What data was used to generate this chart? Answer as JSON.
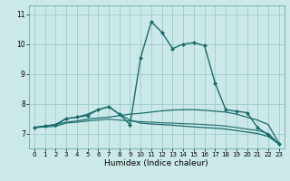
{
  "title": "",
  "xlabel": "Humidex (Indice chaleur)",
  "xlim": [
    -0.5,
    23.5
  ],
  "ylim": [
    6.5,
    11.3
  ],
  "xticks": [
    0,
    1,
    2,
    3,
    4,
    5,
    6,
    7,
    8,
    9,
    10,
    11,
    12,
    13,
    14,
    15,
    16,
    17,
    18,
    19,
    20,
    21,
    22,
    23
  ],
  "yticks": [
    7,
    8,
    9,
    10,
    11
  ],
  "background_color": "#cce9e9",
  "grid_color": "#8bbcbc",
  "line_color": "#1a6b6b",
  "lines": [
    {
      "x": [
        0,
        1,
        2,
        3,
        4,
        5,
        6,
        7,
        8,
        9,
        10,
        11,
        12,
        13,
        14,
        15,
        16,
        17,
        18,
        19,
        20,
        21,
        22,
        23
      ],
      "y": [
        7.2,
        7.25,
        7.3,
        7.5,
        7.55,
        7.6,
        7.8,
        7.9,
        7.65,
        7.3,
        9.55,
        10.75,
        10.4,
        9.85,
        10.0,
        10.05,
        9.95,
        8.7,
        7.8,
        7.75,
        7.7,
        7.2,
        6.95,
        6.65
      ],
      "marker": true,
      "lw": 1.0
    },
    {
      "x": [
        0,
        1,
        2,
        3,
        4,
        5,
        6,
        7,
        8,
        9,
        10,
        11,
        12,
        13,
        14,
        15,
        16,
        17,
        18,
        19,
        20,
        21,
        22,
        23
      ],
      "y": [
        7.2,
        7.25,
        7.3,
        7.38,
        7.42,
        7.48,
        7.52,
        7.55,
        7.6,
        7.65,
        7.68,
        7.72,
        7.76,
        7.79,
        7.8,
        7.8,
        7.78,
        7.75,
        7.72,
        7.65,
        7.55,
        7.45,
        7.3,
        6.68
      ],
      "marker": false,
      "lw": 0.9
    },
    {
      "x": [
        0,
        1,
        2,
        3,
        4,
        5,
        6,
        7,
        8,
        9,
        10,
        11,
        12,
        13,
        14,
        15,
        16,
        17,
        18,
        19,
        20,
        21,
        22,
        23
      ],
      "y": [
        7.2,
        7.25,
        7.3,
        7.5,
        7.55,
        7.65,
        7.8,
        7.9,
        7.65,
        7.45,
        7.35,
        7.32,
        7.3,
        7.28,
        7.25,
        7.22,
        7.2,
        7.18,
        7.15,
        7.1,
        7.05,
        7.0,
        6.9,
        6.65
      ],
      "marker": false,
      "lw": 0.9
    },
    {
      "x": [
        0,
        1,
        2,
        3,
        4,
        5,
        6,
        7,
        8,
        9,
        10,
        11,
        12,
        13,
        14,
        15,
        16,
        17,
        18,
        19,
        20,
        21,
        22,
        23
      ],
      "y": [
        7.2,
        7.22,
        7.24,
        7.35,
        7.38,
        7.42,
        7.45,
        7.48,
        7.45,
        7.42,
        7.4,
        7.38,
        7.36,
        7.35,
        7.33,
        7.32,
        7.3,
        7.28,
        7.25,
        7.2,
        7.15,
        7.1,
        7.0,
        6.65
      ],
      "marker": false,
      "lw": 0.8
    }
  ]
}
